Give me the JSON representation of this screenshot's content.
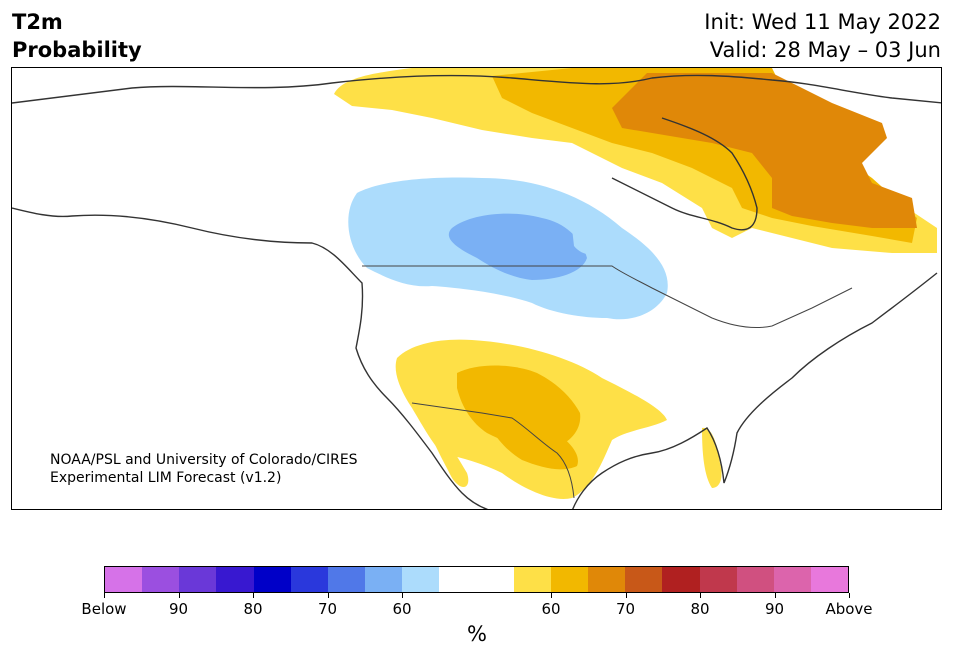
{
  "header": {
    "variable": "T2m",
    "product": "Probability",
    "init": "Init: Wed 11 May 2022",
    "valid": "Valid: 28 May – 03 Jun"
  },
  "credit": {
    "line1": "NOAA/PSL and University of Colorado/CIRES",
    "line2": "Experimental LIM Forecast (v1.2)"
  },
  "colorbar": {
    "unit": "%",
    "colors": [
      "#d672e8",
      "#9b4fe0",
      "#6a38d8",
      "#3818d0",
      "#0000c8",
      "#2a38dc",
      "#5078e8",
      "#7ab0f4",
      "#acdcfc",
      "#ffffff",
      "#ffffff",
      "#fee047",
      "#f2b800",
      "#e08808",
      "#c85818",
      "#b02020",
      "#c0384c",
      "#d05080",
      "#dc64ac",
      "#e878dc"
    ],
    "labels": [
      "Below",
      "90",
      "80",
      "70",
      "60",
      "60",
      "70",
      "80",
      "90",
      "Above"
    ]
  },
  "map_colors": {
    "land": "#ffffff",
    "coast": "#333333",
    "light_blue": "#acdcfc",
    "mid_blue": "#7ab0f4",
    "yellow": "#fee047",
    "gold": "#f2b800",
    "orange": "#e08808"
  }
}
